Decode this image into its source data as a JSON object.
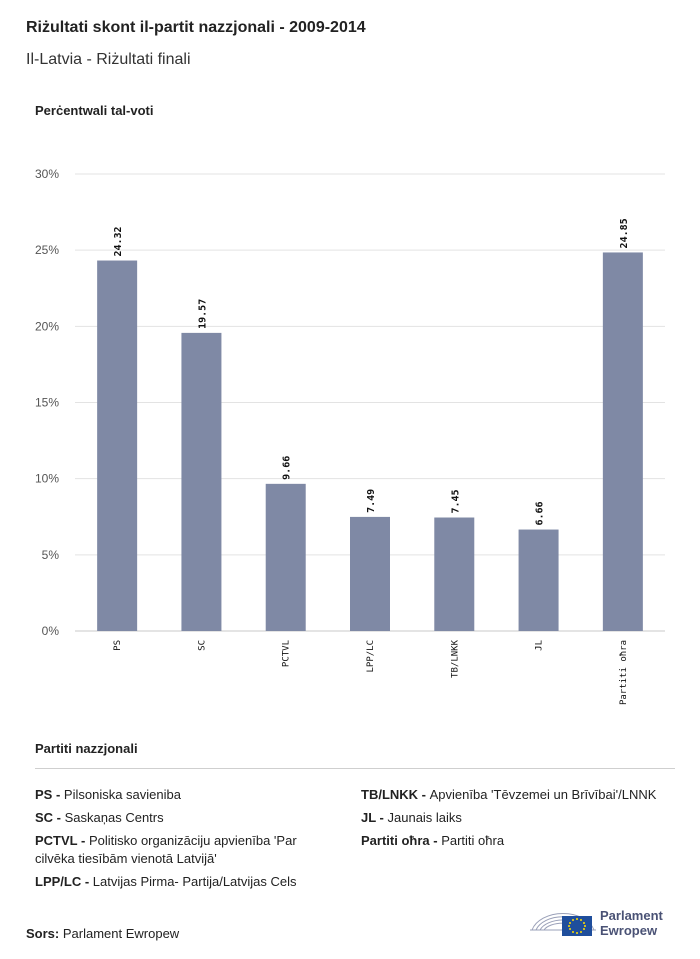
{
  "title": "Riżultati skont il-partit nazzjonali - 2009-2014",
  "subtitle": "Il-Latvia - Riżultati finali",
  "colors": {
    "bar": "#7f89a5",
    "eu_blue": "#1f4e9c",
    "eu_star": "#ffdd00"
  },
  "chart_data": {
    "type": "bar",
    "ylabel": "Perċentwali tal-voti",
    "categories": [
      "PS",
      "SC",
      "PCTVL",
      "LPP/LC",
      "TB/LNKK",
      "JL",
      "Partiti oħra"
    ],
    "values": [
      24.32,
      19.57,
      9.66,
      7.49,
      7.45,
      6.66,
      24.85
    ],
    "value_labels": [
      "24.32",
      "19.57",
      "9.66",
      "7.49",
      "7.45",
      "6.66",
      "24.85"
    ],
    "ylim": [
      0,
      30
    ],
    "yticks": [
      0,
      5,
      10,
      15,
      20,
      25,
      30
    ],
    "ytick_labels": [
      "0%",
      "5%",
      "10%",
      "15%",
      "20%",
      "25%",
      "30%"
    ],
    "grid": true
  },
  "legend": {
    "title": "Partiti nazzjonali",
    "left": [
      {
        "abbr": "PS -",
        "name": "Pilsoniska savieniba"
      },
      {
        "abbr": "SC -",
        "name": "Saskaņas Centrs"
      },
      {
        "abbr": "PCTVL -",
        "name": "Politisko organizāciju apvienība 'Par cilvēka tiesībām vienotā Latvijā'"
      },
      {
        "abbr": "LPP/LC -",
        "name": "Latvijas Pirma- Partija/Latvijas Cels"
      }
    ],
    "right": [
      {
        "abbr": "TB/LNKK -",
        "name": "Apvienība 'Tēvzemei un Brīvībai'/LNNK"
      },
      {
        "abbr": "JL -",
        "name": "Jaunais laiks"
      },
      {
        "abbr": "Partiti oħra -",
        "name": "Partiti oħra"
      }
    ]
  },
  "source": {
    "label": "Sors:",
    "value": "Parlament Ewropew"
  },
  "logo": {
    "line1": "Parlament",
    "line2": "Ewropew"
  }
}
